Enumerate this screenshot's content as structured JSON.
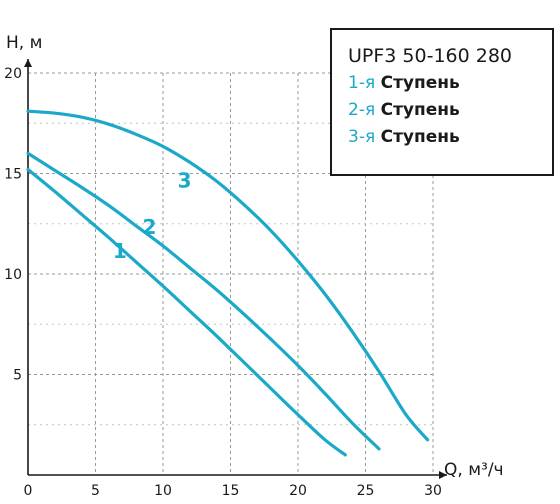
{
  "chart_data": {
    "type": "line",
    "title": "UPF3 50-160 280",
    "xlabel": "Q, м³/ч",
    "ylabel": "H, м",
    "xlim": [
      0,
      30
    ],
    "ylim": [
      0,
      20
    ],
    "x_ticks": [
      0,
      5,
      10,
      15,
      20,
      25,
      30
    ],
    "y_ticks": [
      5,
      10,
      15,
      20
    ],
    "grid": true,
    "legend_position": "top-right",
    "line_color": "#1aa9c9",
    "legend_items": [
      {
        "number": "1-я",
        "word": "Ступень"
      },
      {
        "number": "2-я",
        "word": "Ступень"
      },
      {
        "number": "3-я",
        "word": "Ступень"
      }
    ],
    "series": [
      {
        "name": "1",
        "label": "1",
        "label_at": [
          6.8,
          10.8
        ],
        "x": [
          0,
          2,
          4,
          6,
          8,
          10,
          12,
          14,
          16,
          18,
          20,
          22,
          23.5
        ],
        "y": [
          15.2,
          14.1,
          12.95,
          11.8,
          10.6,
          9.4,
          8.15,
          6.9,
          5.6,
          4.3,
          3.0,
          1.75,
          1.0
        ]
      },
      {
        "name": "2",
        "label": "2",
        "label_at": [
          9.0,
          12.0
        ],
        "x": [
          0,
          2,
          4,
          6,
          8,
          10,
          12,
          14,
          16,
          18,
          20,
          22,
          24,
          26
        ],
        "y": [
          16.0,
          15.15,
          14.3,
          13.4,
          12.4,
          11.4,
          10.3,
          9.2,
          8.0,
          6.75,
          5.45,
          4.05,
          2.6,
          1.3
        ]
      },
      {
        "name": "3",
        "label": "3",
        "label_at": [
          11.6,
          14.3
        ],
        "x": [
          0,
          2,
          4,
          6,
          8,
          10,
          12,
          14,
          16,
          18,
          20,
          22,
          24,
          26,
          28,
          29.6
        ],
        "y": [
          18.1,
          18.0,
          17.8,
          17.45,
          16.95,
          16.35,
          15.55,
          14.6,
          13.45,
          12.15,
          10.65,
          9.0,
          7.15,
          5.15,
          3.0,
          1.75
        ]
      }
    ]
  }
}
